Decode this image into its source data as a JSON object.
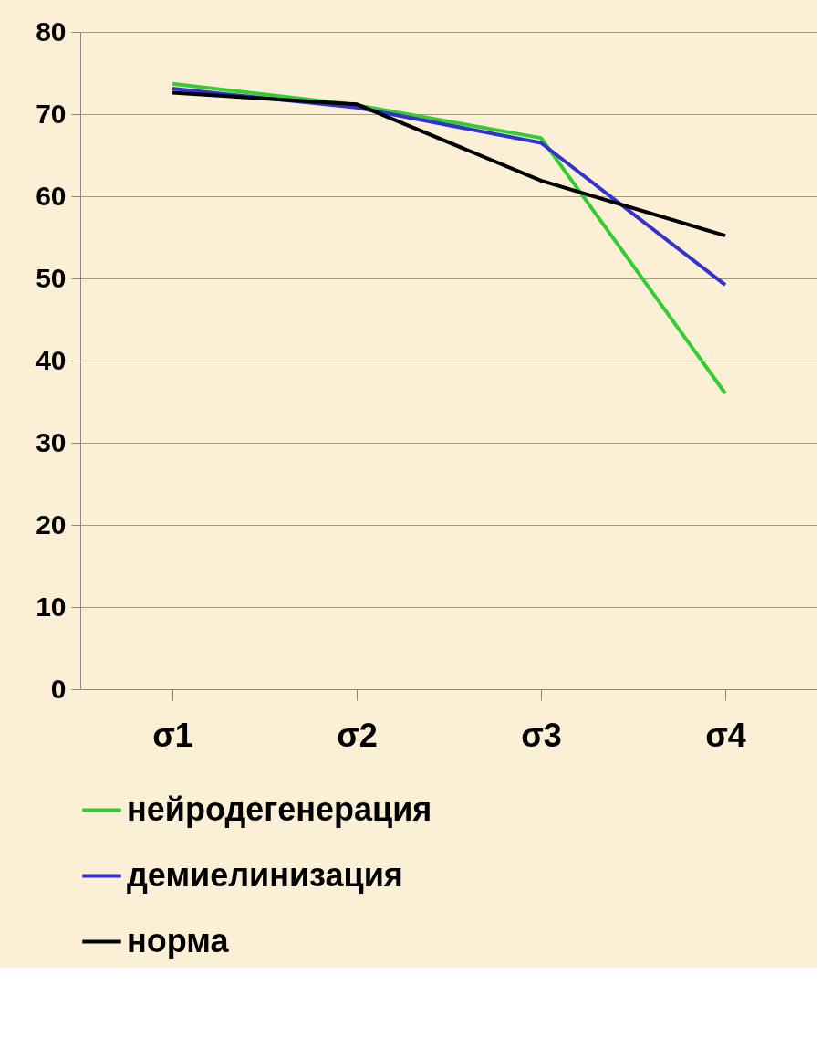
{
  "chart_data": {
    "type": "line",
    "categories": [
      "σ1",
      "σ2",
      "σ3",
      "σ4"
    ],
    "series": [
      {
        "name": "нейродегенерация",
        "color": "#33cc33",
        "values": [
          73.7,
          71.1,
          67.1,
          36.0
        ]
      },
      {
        "name": "демиелинизация",
        "color": "#3333cc",
        "values": [
          73.1,
          70.8,
          66.5,
          49.2
        ]
      },
      {
        "name": "норма",
        "color": "#000000",
        "values": [
          72.6,
          71.2,
          61.9,
          55.2
        ]
      }
    ],
    "ylim": [
      0,
      80
    ],
    "yticks": [
      0,
      10,
      20,
      30,
      40,
      50,
      60,
      70,
      80
    ],
    "grid": "y",
    "legend": "bottom",
    "marker": "none",
    "line_style": "solid"
  }
}
